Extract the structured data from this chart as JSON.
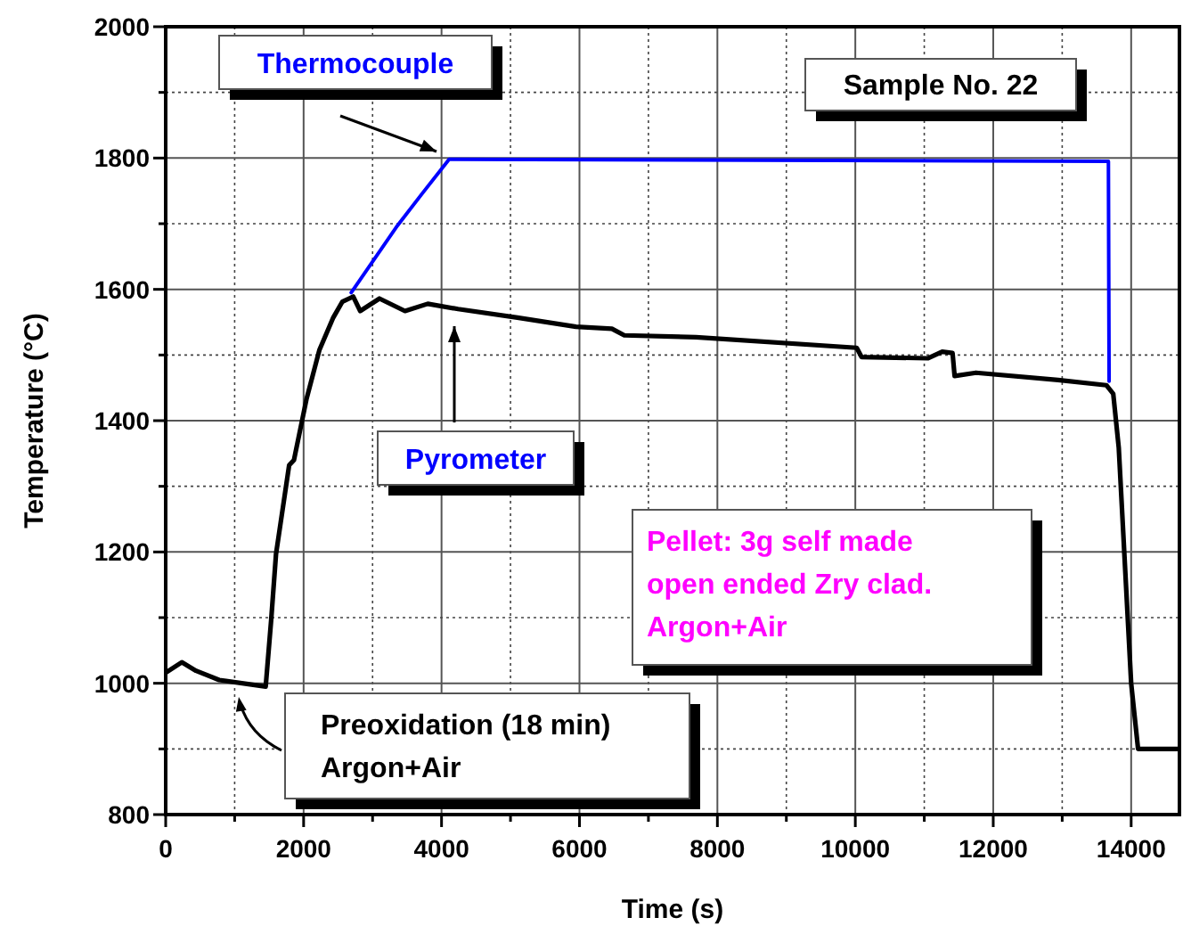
{
  "chart_data": {
    "type": "line",
    "xlabel": "Time (s)",
    "ylabel": "Temperature (°C)",
    "xlim": [
      0,
      14700
    ],
    "ylim": [
      800,
      2000
    ],
    "xticks": [
      0,
      {
        "value": 1000,
        "label": null
      },
      2000,
      {
        "value": 3000,
        "label": null
      },
      4000,
      {
        "value": 5000,
        "label": null
      },
      6000,
      {
        "value": 7000,
        "label": null
      },
      8000,
      {
        "value": 9000,
        "label": null
      },
      10000,
      {
        "value": 11000,
        "label": null
      },
      12000,
      {
        "value": 13000,
        "label": null
      },
      14000
    ],
    "yticks": [
      800,
      {
        "value": 900,
        "label": null
      },
      1000,
      {
        "value": 1100,
        "label": null
      },
      1200,
      {
        "value": 1300,
        "label": null
      },
      1400,
      {
        "value": 1500,
        "label": null
      },
      1600,
      {
        "value": 1700,
        "label": null
      },
      1800,
      {
        "value": 1900,
        "label": null
      },
      2000
    ],
    "grid": true,
    "marker": "none",
    "line_style": "solid",
    "series": [
      {
        "name": "Thermocouple",
        "color": "#0000ff",
        "x": [
          2690,
          3360,
          3720,
          4110,
          13670,
          13680
        ],
        "values": [
          1595,
          1697,
          1746,
          1798,
          1795,
          1460
        ]
      },
      {
        "name": "Pyrometer",
        "color": "#000000",
        "x": [
          0,
          233,
          440,
          776,
          1450,
          1530,
          1600,
          1790,
          1860,
          2040,
          2230,
          2430,
          2560,
          2720,
          2820,
          3100,
          3470,
          3800,
          4240,
          5100,
          5950,
          6470,
          6650,
          7690,
          10020,
          10090,
          11050,
          11260,
          11410,
          11440,
          11750,
          12940,
          13640,
          13740,
          13820,
          14000,
          14100,
          14700
        ],
        "values": [
          1016,
          1032,
          1019,
          1005,
          995,
          1097,
          1197,
          1332,
          1340,
          1432,
          1508,
          1557,
          1581,
          1589,
          1567,
          1586,
          1567,
          1578,
          1570,
          1557,
          1543,
          1540,
          1530,
          1527,
          1511,
          1497,
          1495,
          1505,
          1503,
          1468,
          1473,
          1462,
          1454,
          1441,
          1359,
          1000,
          900,
          900
        ]
      }
    ],
    "annotations": [
      "Sample No. 22",
      "Pellet: 3g self made\nopen ended Zry clad.\nArgon+Air",
      "Preoxidation (18 min)\nArgon+Air"
    ]
  }
}
